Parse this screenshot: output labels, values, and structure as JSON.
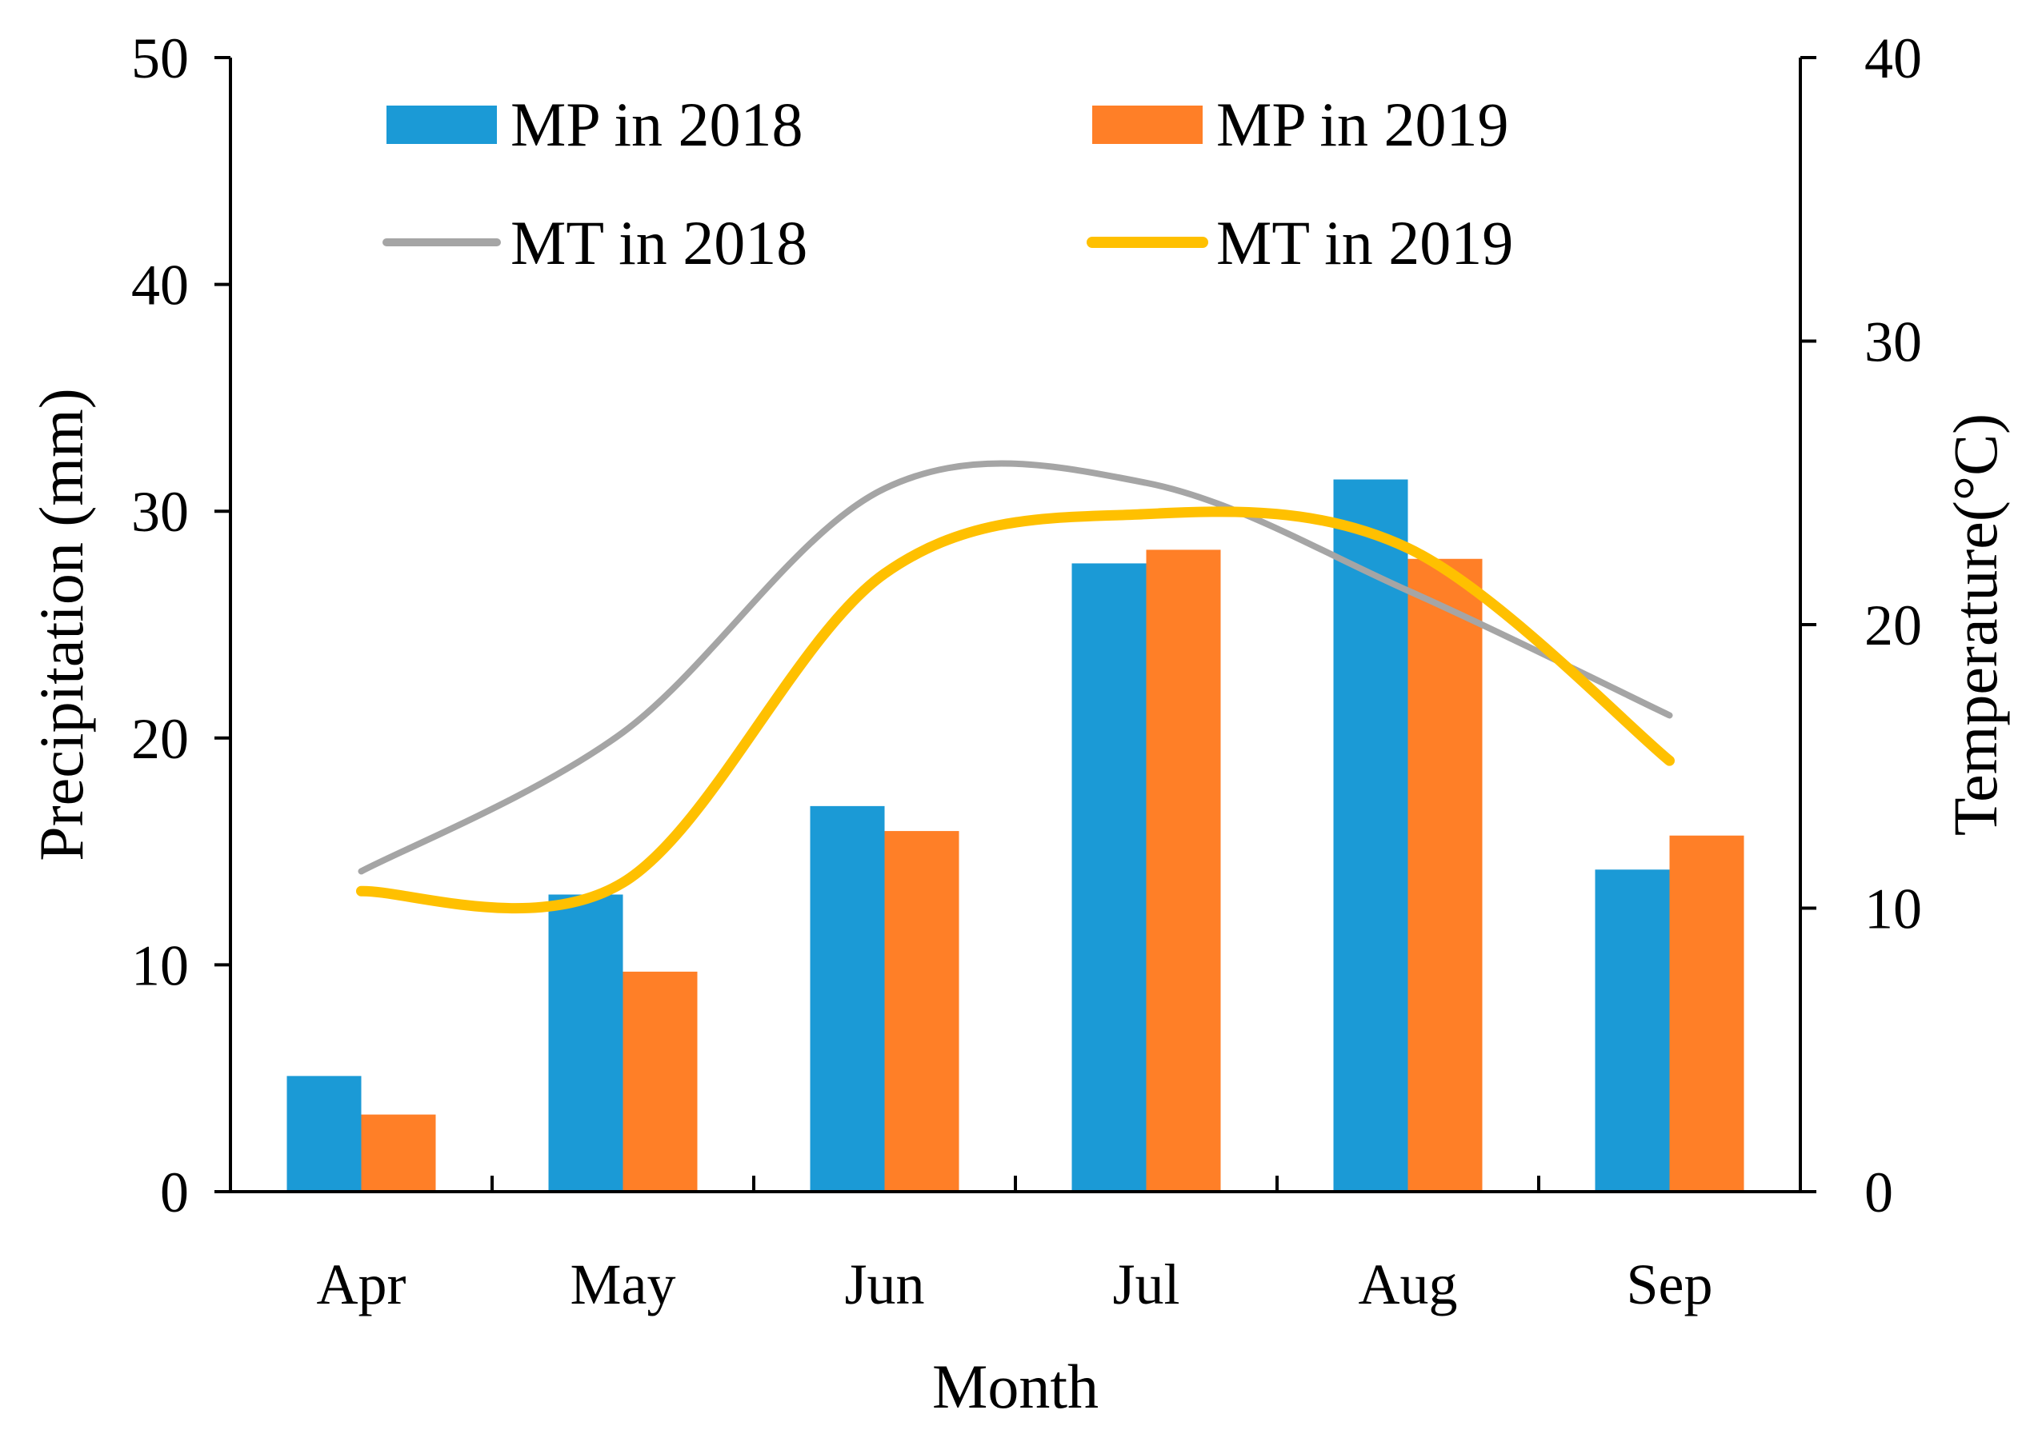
{
  "chart_data": {
    "type": "bar",
    "categories": [
      "Apr",
      "May",
      "Jun",
      "Jul",
      "Aug",
      "Sep"
    ],
    "xlabel": "Month",
    "ylabel": "Precipitation (mm)",
    "y2label": "Temperature(°C)",
    "ylim": [
      0,
      50
    ],
    "y2lim": [
      0,
      40
    ],
    "yticks": [
      "0",
      "10",
      "20",
      "30",
      "40",
      "50"
    ],
    "y2ticks": [
      "0",
      "10",
      "20",
      "30",
      "40"
    ],
    "grid": false,
    "legend_position": "top",
    "series": [
      {
        "name": "MP in 2018",
        "kind": "bar",
        "axis": "left",
        "color": "#1B9AD6",
        "values": [
          5.1,
          13.1,
          17.0,
          27.7,
          31.4,
          14.2
        ]
      },
      {
        "name": "MP in 2019",
        "kind": "bar",
        "axis": "left",
        "color": "#FF7F27",
        "values": [
          3.4,
          9.7,
          15.9,
          28.3,
          27.9,
          15.7
        ]
      },
      {
        "name": "MT in 2018",
        "kind": "line",
        "axis": "right",
        "color": "#A5A5A5",
        "values": [
          11.3,
          16.2,
          24.8,
          25.0,
          21.2,
          16.8
        ]
      },
      {
        "name": "MT in 2019",
        "kind": "line",
        "axis": "right",
        "color": "#FFC000",
        "values": [
          10.6,
          10.9,
          21.8,
          23.9,
          22.7,
          15.2
        ]
      }
    ]
  }
}
